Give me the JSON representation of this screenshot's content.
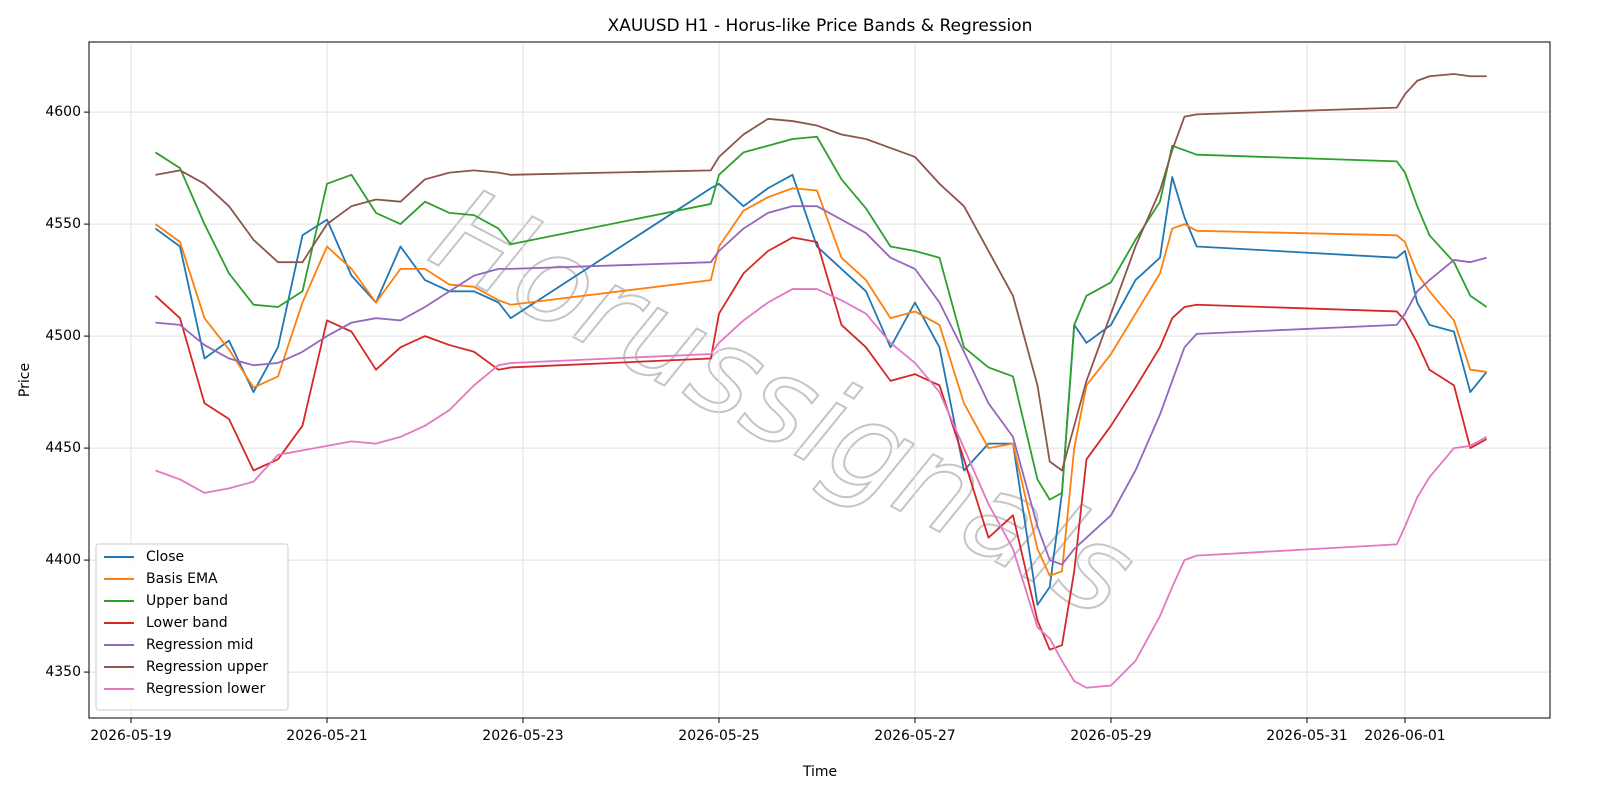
{
  "chart_data": {
    "type": "line",
    "title": "XAUUSD H1 - Horus-like Price Bands & Regression",
    "xlabel": "Time",
    "ylabel": "Price",
    "watermark": "Horussignals",
    "grid": true,
    "legend": "lower left",
    "xlim": [
      "2026-05-18 13:43",
      "2026-06-02 11:31"
    ],
    "xticks": [
      "2026-05-19",
      "2026-05-21",
      "2026-05-23",
      "2026-05-25",
      "2026-05-27",
      "2026-05-29",
      "2026-05-31",
      "2026-06-01"
    ],
    "ylim": [
      4329.5,
      4631.3
    ],
    "yticks": [
      4350,
      4400,
      4450,
      4500,
      4550,
      4600
    ],
    "x": [
      "2026-05-19 06:00",
      "2026-05-19 12:00",
      "2026-05-19 18:00",
      "2026-05-20 00:00",
      "2026-05-20 06:00",
      "2026-05-20 12:00",
      "2026-05-20 18:00",
      "2026-05-21 00:00",
      "2026-05-21 06:00",
      "2026-05-21 12:00",
      "2026-05-21 18:00",
      "2026-05-22 00:00",
      "2026-05-22 06:00",
      "2026-05-22 12:00",
      "2026-05-22 18:00",
      "2026-05-22 21:00",
      "2026-05-24 22:00",
      "2026-05-25 00:00",
      "2026-05-25 06:00",
      "2026-05-25 12:00",
      "2026-05-25 18:00",
      "2026-05-26 00:00",
      "2026-05-26 06:00",
      "2026-05-26 12:00",
      "2026-05-26 18:00",
      "2026-05-27 00:00",
      "2026-05-27 06:00",
      "2026-05-27 12:00",
      "2026-05-27 18:00",
      "2026-05-28 00:00",
      "2026-05-28 06:00",
      "2026-05-28 09:00",
      "2026-05-28 12:00",
      "2026-05-28 15:00",
      "2026-05-28 18:00",
      "2026-05-29 00:00",
      "2026-05-29 06:00",
      "2026-05-29 12:00",
      "2026-05-29 15:00",
      "2026-05-29 18:00",
      "2026-05-29 21:00",
      "2026-05-31 22:00",
      "2026-06-01 00:00",
      "2026-06-01 03:00",
      "2026-06-01 06:00",
      "2026-06-01 12:00",
      "2026-06-01 16:00",
      "2026-06-01 20:00"
    ],
    "series": [
      {
        "name": "Close",
        "color": "#1f77b4",
        "values": [
          4548,
          4540,
          4490,
          4498,
          4475,
          4495,
          4545,
          4552,
          4527,
          4515,
          4540,
          4525,
          4520,
          4520,
          4515,
          4508,
          4566,
          4568,
          4558,
          4566,
          4572,
          4540,
          4530,
          4520,
          4495,
          4515,
          4495,
          4440,
          4452,
          4452,
          4380,
          4388,
          4430,
          4505,
          4497,
          4505,
          4525,
          4535,
          4571,
          4553,
          4540,
          4535,
          4538,
          4515,
          4505,
          4502,
          4475,
          4484
        ]
      },
      {
        "name": "Basis EMA",
        "color": "#ff7f0e",
        "values": [
          4550,
          4542,
          4508,
          4494,
          4477,
          4482,
          4515,
          4540,
          4530,
          4515,
          4530,
          4530,
          4523,
          4522,
          4516,
          4514,
          4525,
          4540,
          4556,
          4562,
          4566,
          4565,
          4535,
          4525,
          4508,
          4511,
          4505,
          4470,
          4450,
          4452,
          4405,
          4393,
          4395,
          4450,
          4478,
          4492,
          4510,
          4528,
          4548,
          4550,
          4547,
          4545,
          4542,
          4528,
          4520,
          4507,
          4485,
          4484
        ]
      },
      {
        "name": "Upper band",
        "color": "#2ca02c",
        "values": [
          4582,
          4575,
          4550,
          4528,
          4514,
          4513,
          4520,
          4568,
          4572,
          4555,
          4550,
          4560,
          4555,
          4554,
          4548,
          4541,
          4559,
          4572,
          4582,
          4585,
          4588,
          4589,
          4570,
          4557,
          4540,
          4538,
          4535,
          4495,
          4486,
          4482,
          4436,
          4427,
          4430,
          4505,
          4518,
          4524,
          4543,
          4560,
          4585,
          4583,
          4581,
          4578,
          4573,
          4558,
          4545,
          4533,
          4518,
          4513
        ]
      },
      {
        "name": "Lower band",
        "color": "#d62728",
        "values": [
          4518,
          4508,
          4470,
          4463,
          4440,
          4445,
          4460,
          4507,
          4502,
          4485,
          4495,
          4500,
          4496,
          4493,
          4485,
          4486,
          4490,
          4510,
          4528,
          4538,
          4544,
          4542,
          4505,
          4495,
          4480,
          4483,
          4478,
          4445,
          4410,
          4420,
          4373,
          4360,
          4362,
          4395,
          4445,
          4460,
          4477,
          4495,
          4508,
          4513,
          4514,
          4511,
          4507,
          4497,
          4485,
          4478,
          4450,
          4454
        ]
      },
      {
        "name": "Regression mid",
        "color": "#9467bd",
        "values": [
          4506,
          4505,
          4496,
          4490,
          4487,
          4488,
          4493,
          4500,
          4506,
          4508,
          4507,
          4513,
          4520,
          4527,
          4530,
          4530,
          4533,
          4538,
          4548,
          4555,
          4558,
          4558,
          4552,
          4546,
          4535,
          4530,
          4515,
          4493,
          4470,
          4455,
          4415,
          4400,
          4398,
          4405,
          4410,
          4420,
          4440,
          4465,
          4480,
          4495,
          4501,
          4505,
          4510,
          4520,
          4525,
          4534,
          4533,
          4535
        ]
      },
      {
        "name": "Regression upper",
        "color": "#8c564b",
        "values": [
          4572,
          4574,
          4568,
          4558,
          4543,
          4533,
          4533,
          4550,
          4558,
          4561,
          4560,
          4570,
          4573,
          4574,
          4573,
          4572,
          4574,
          4580,
          4590,
          4597,
          4596,
          4594,
          4590,
          4588,
          4584,
          4580,
          4568,
          4558,
          4538,
          4518,
          4478,
          4444,
          4440,
          4460,
          4480,
          4510,
          4540,
          4565,
          4583,
          4598,
          4599,
          4602,
          4608,
          4614,
          4616,
          4617,
          4616,
          4616
        ]
      },
      {
        "name": "Regression lower",
        "color": "#e377c2",
        "values": [
          4440,
          4436,
          4430,
          4432,
          4435,
          4447,
          4449,
          4451,
          4453,
          4452,
          4455,
          4460,
          4467,
          4478,
          4487,
          4488,
          4492,
          4497,
          4507,
          4515,
          4521,
          4521,
          4516,
          4510,
          4497,
          4488,
          4475,
          4450,
          4425,
          4405,
          4370,
          4365,
          4355,
          4346,
          4343,
          4344,
          4355,
          4375,
          4388,
          4400,
          4402,
          4407,
          4415,
          4428,
          4437,
          4450,
          4451,
          4455
        ]
      }
    ]
  }
}
